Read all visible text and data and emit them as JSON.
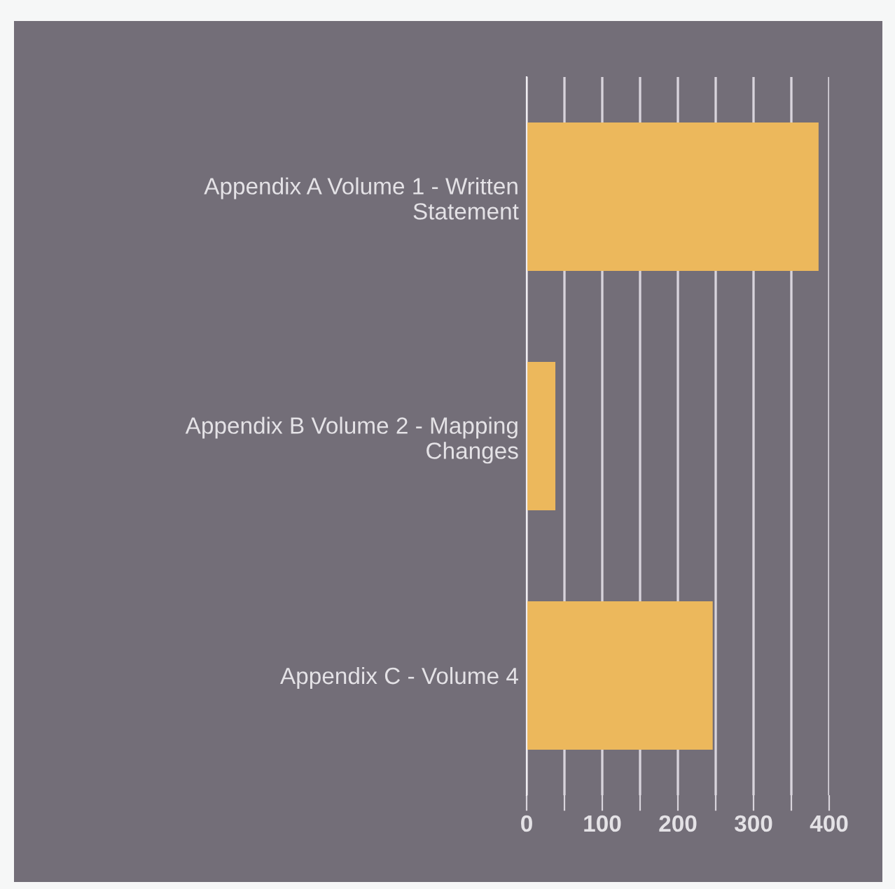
{
  "chart_data": {
    "type": "bar",
    "orientation": "horizontal",
    "categories": [
      "Appendix A Volume 1 - Written\nStatement",
      "Appendix B Volume 2 - Mapping\nChanges",
      "Appendix C - Volume 4"
    ],
    "values": [
      386,
      38,
      246
    ],
    "color": "#ecb85c",
    "xlim": [
      0,
      400
    ],
    "xticks": [
      0,
      {
        "value": 50,
        "label": null
      },
      100,
      {
        "value": 150,
        "label": null
      },
      200,
      {
        "value": 250,
        "label": null
      },
      300,
      {
        "value": 350,
        "label": null
      },
      400
    ],
    "grid": "x"
  }
}
